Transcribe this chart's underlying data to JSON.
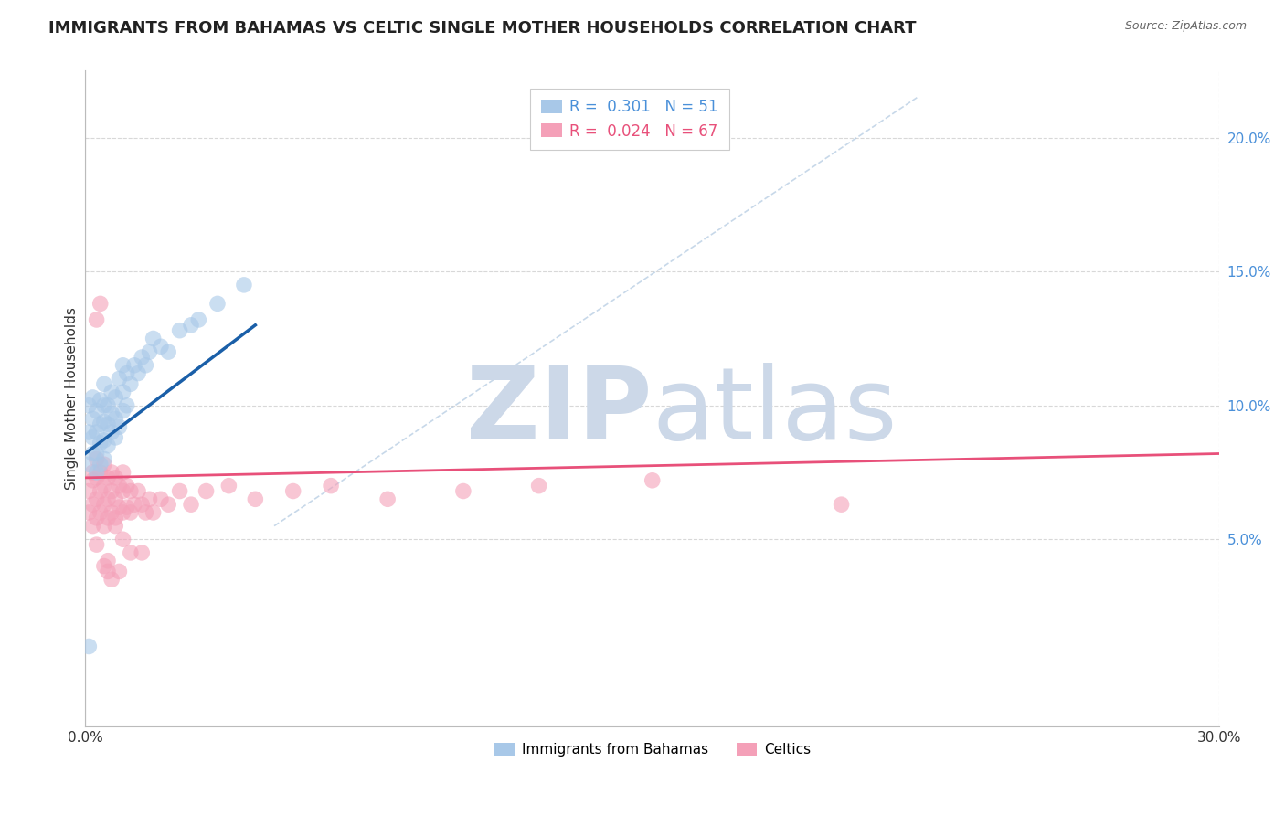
{
  "title": "IMMIGRANTS FROM BAHAMAS VS CELTIC SINGLE MOTHER HOUSEHOLDS CORRELATION CHART",
  "source": "Source: ZipAtlas.com",
  "ylabel": "Single Mother Households",
  "xlim": [
    0.0,
    0.3
  ],
  "ylim": [
    -0.02,
    0.225
  ],
  "xticks": [
    0.0,
    0.05,
    0.1,
    0.15,
    0.2,
    0.25,
    0.3
  ],
  "xtick_labels": [
    "0.0%",
    "",
    "",
    "",
    "",
    "",
    "30.0%"
  ],
  "yticks_right": [
    0.05,
    0.1,
    0.15,
    0.2
  ],
  "ytick_labels_right": [
    "5.0%",
    "10.0%",
    "15.0%",
    "20.0%"
  ],
  "legend_blue_r": "0.301",
  "legend_blue_n": "51",
  "legend_pink_r": "0.024",
  "legend_pink_n": "67",
  "legend_blue_label": "Immigrants from Bahamas",
  "legend_pink_label": "Celtics",
  "blue_color": "#a8c8e8",
  "pink_color": "#f4a0b8",
  "blue_line_color": "#1a5fa8",
  "pink_line_color": "#e8507a",
  "diag_color": "#b0c8e0",
  "blue_scatter_x": [
    0.001,
    0.001,
    0.001,
    0.002,
    0.002,
    0.002,
    0.002,
    0.003,
    0.003,
    0.003,
    0.003,
    0.004,
    0.004,
    0.004,
    0.004,
    0.005,
    0.005,
    0.005,
    0.005,
    0.005,
    0.006,
    0.006,
    0.006,
    0.007,
    0.007,
    0.007,
    0.008,
    0.008,
    0.008,
    0.009,
    0.009,
    0.01,
    0.01,
    0.01,
    0.011,
    0.011,
    0.012,
    0.013,
    0.014,
    0.015,
    0.016,
    0.017,
    0.018,
    0.02,
    0.022,
    0.025,
    0.028,
    0.03,
    0.035,
    0.042,
    0.001
  ],
  "blue_scatter_y": [
    0.09,
    0.078,
    0.1,
    0.082,
    0.088,
    0.095,
    0.103,
    0.075,
    0.082,
    0.09,
    0.098,
    0.078,
    0.086,
    0.093,
    0.102,
    0.08,
    0.087,
    0.094,
    0.1,
    0.108,
    0.085,
    0.093,
    0.1,
    0.09,
    0.097,
    0.105,
    0.088,
    0.095,
    0.103,
    0.092,
    0.11,
    0.098,
    0.105,
    0.115,
    0.1,
    0.112,
    0.108,
    0.115,
    0.112,
    0.118,
    0.115,
    0.12,
    0.125,
    0.122,
    0.12,
    0.128,
    0.13,
    0.132,
    0.138,
    0.145,
    0.01
  ],
  "pink_scatter_x": [
    0.001,
    0.001,
    0.002,
    0.002,
    0.002,
    0.003,
    0.003,
    0.003,
    0.003,
    0.004,
    0.004,
    0.004,
    0.005,
    0.005,
    0.005,
    0.005,
    0.006,
    0.006,
    0.006,
    0.007,
    0.007,
    0.007,
    0.008,
    0.008,
    0.008,
    0.009,
    0.009,
    0.01,
    0.01,
    0.01,
    0.011,
    0.011,
    0.012,
    0.012,
    0.013,
    0.014,
    0.015,
    0.016,
    0.017,
    0.018,
    0.02,
    0.022,
    0.025,
    0.028,
    0.032,
    0.038,
    0.045,
    0.055,
    0.065,
    0.08,
    0.1,
    0.12,
    0.15,
    0.2,
    0.003,
    0.004,
    0.005,
    0.006,
    0.007,
    0.008,
    0.01,
    0.012,
    0.015,
    0.002,
    0.003,
    0.006,
    0.009
  ],
  "pink_scatter_y": [
    0.06,
    0.068,
    0.055,
    0.063,
    0.072,
    0.058,
    0.065,
    0.073,
    0.08,
    0.06,
    0.068,
    0.075,
    0.055,
    0.063,
    0.07,
    0.078,
    0.058,
    0.065,
    0.073,
    0.06,
    0.068,
    0.075,
    0.058,
    0.065,
    0.073,
    0.062,
    0.07,
    0.06,
    0.068,
    0.075,
    0.062,
    0.07,
    0.06,
    0.068,
    0.063,
    0.068,
    0.063,
    0.06,
    0.065,
    0.06,
    0.065,
    0.063,
    0.068,
    0.063,
    0.068,
    0.07,
    0.065,
    0.068,
    0.07,
    0.065,
    0.068,
    0.07,
    0.072,
    0.063,
    0.132,
    0.138,
    0.04,
    0.038,
    0.035,
    0.055,
    0.05,
    0.045,
    0.045,
    0.075,
    0.048,
    0.042,
    0.038
  ],
  "blue_regline_x": [
    0.0,
    0.045
  ],
  "blue_regline_y": [
    0.082,
    0.13
  ],
  "pink_regline_x": [
    0.0,
    0.3
  ],
  "pink_regline_y": [
    0.073,
    0.082
  ],
  "diag_line_x": [
    0.05,
    0.22
  ],
  "diag_line_y": [
    0.055,
    0.215
  ],
  "watermark_zip": "ZIP",
  "watermark_atlas": "atlas",
  "watermark_color": "#ccd8e8",
  "background_color": "#ffffff",
  "grid_color": "#d8d8d8"
}
